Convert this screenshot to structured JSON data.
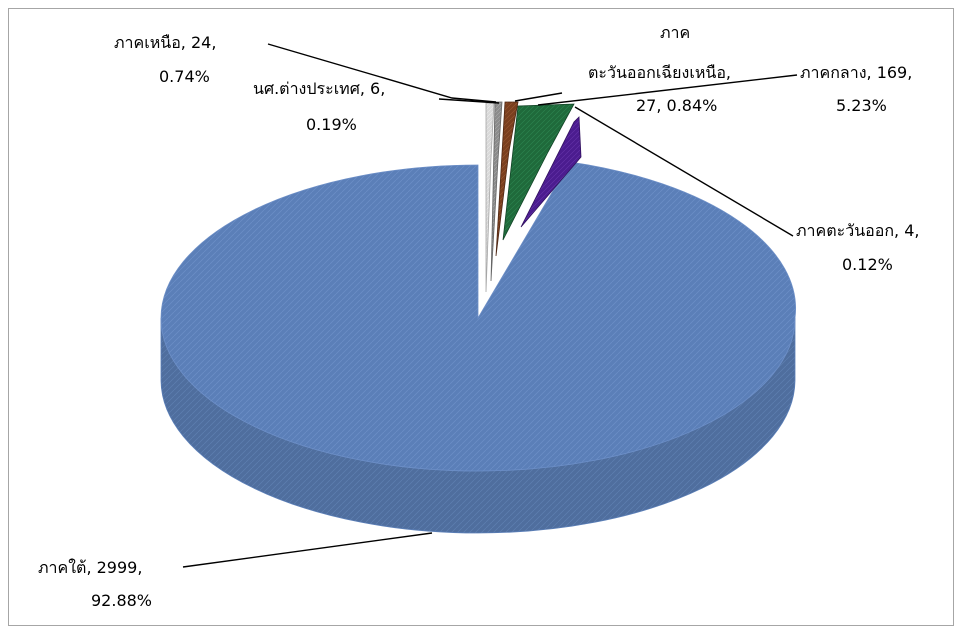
{
  "chart_data": {
    "type": "pie",
    "title": "",
    "legend": "none",
    "three_d": true,
    "slices": [
      {
        "label": "ภาคใต้",
        "value": 2999,
        "percent": "92.88%",
        "color": "#5B7FB8"
      },
      {
        "label": "ภาคตะวันออก",
        "value": 4,
        "percent": "0.12%",
        "color": "#4B1C8F"
      },
      {
        "label": "ภาคกลาง",
        "value": 169,
        "percent": "5.23%",
        "color": "#1F6A3B"
      },
      {
        "label": "ภาคตะวันออกเฉียงเหนือ",
        "value": 27,
        "percent": "0.84%",
        "color": "#7A3F1F"
      },
      {
        "label": "นศ.ต่างประเทศ",
        "value": 6,
        "percent": "0.19%",
        "color": "#8C8C8C"
      },
      {
        "label": "ภาคเหนือ",
        "value": 24,
        "percent": "0.74%",
        "color": "#D9D9D9"
      }
    ],
    "labels": {
      "south": {
        "line1": "ภาคใต้, 2999,",
        "line2": "92.88%"
      },
      "east": {
        "line1": "ภาคตะวันออก, 4,",
        "line2": "0.12%"
      },
      "central": {
        "line1": "ภาคกลาง, 169,",
        "line2": "5.23%"
      },
      "northeast": {
        "line1": "ภาค",
        "line2": "ตะวันออกเฉียงเหนือ,",
        "line3": "27, 0.84%"
      },
      "foreign": {
        "line1": "นศ.ต่างประเทศ, 6,",
        "line2": "0.19%"
      },
      "north": {
        "line1": "ภาคเหนือ, 24,",
        "line2": "0.74%"
      }
    }
  }
}
